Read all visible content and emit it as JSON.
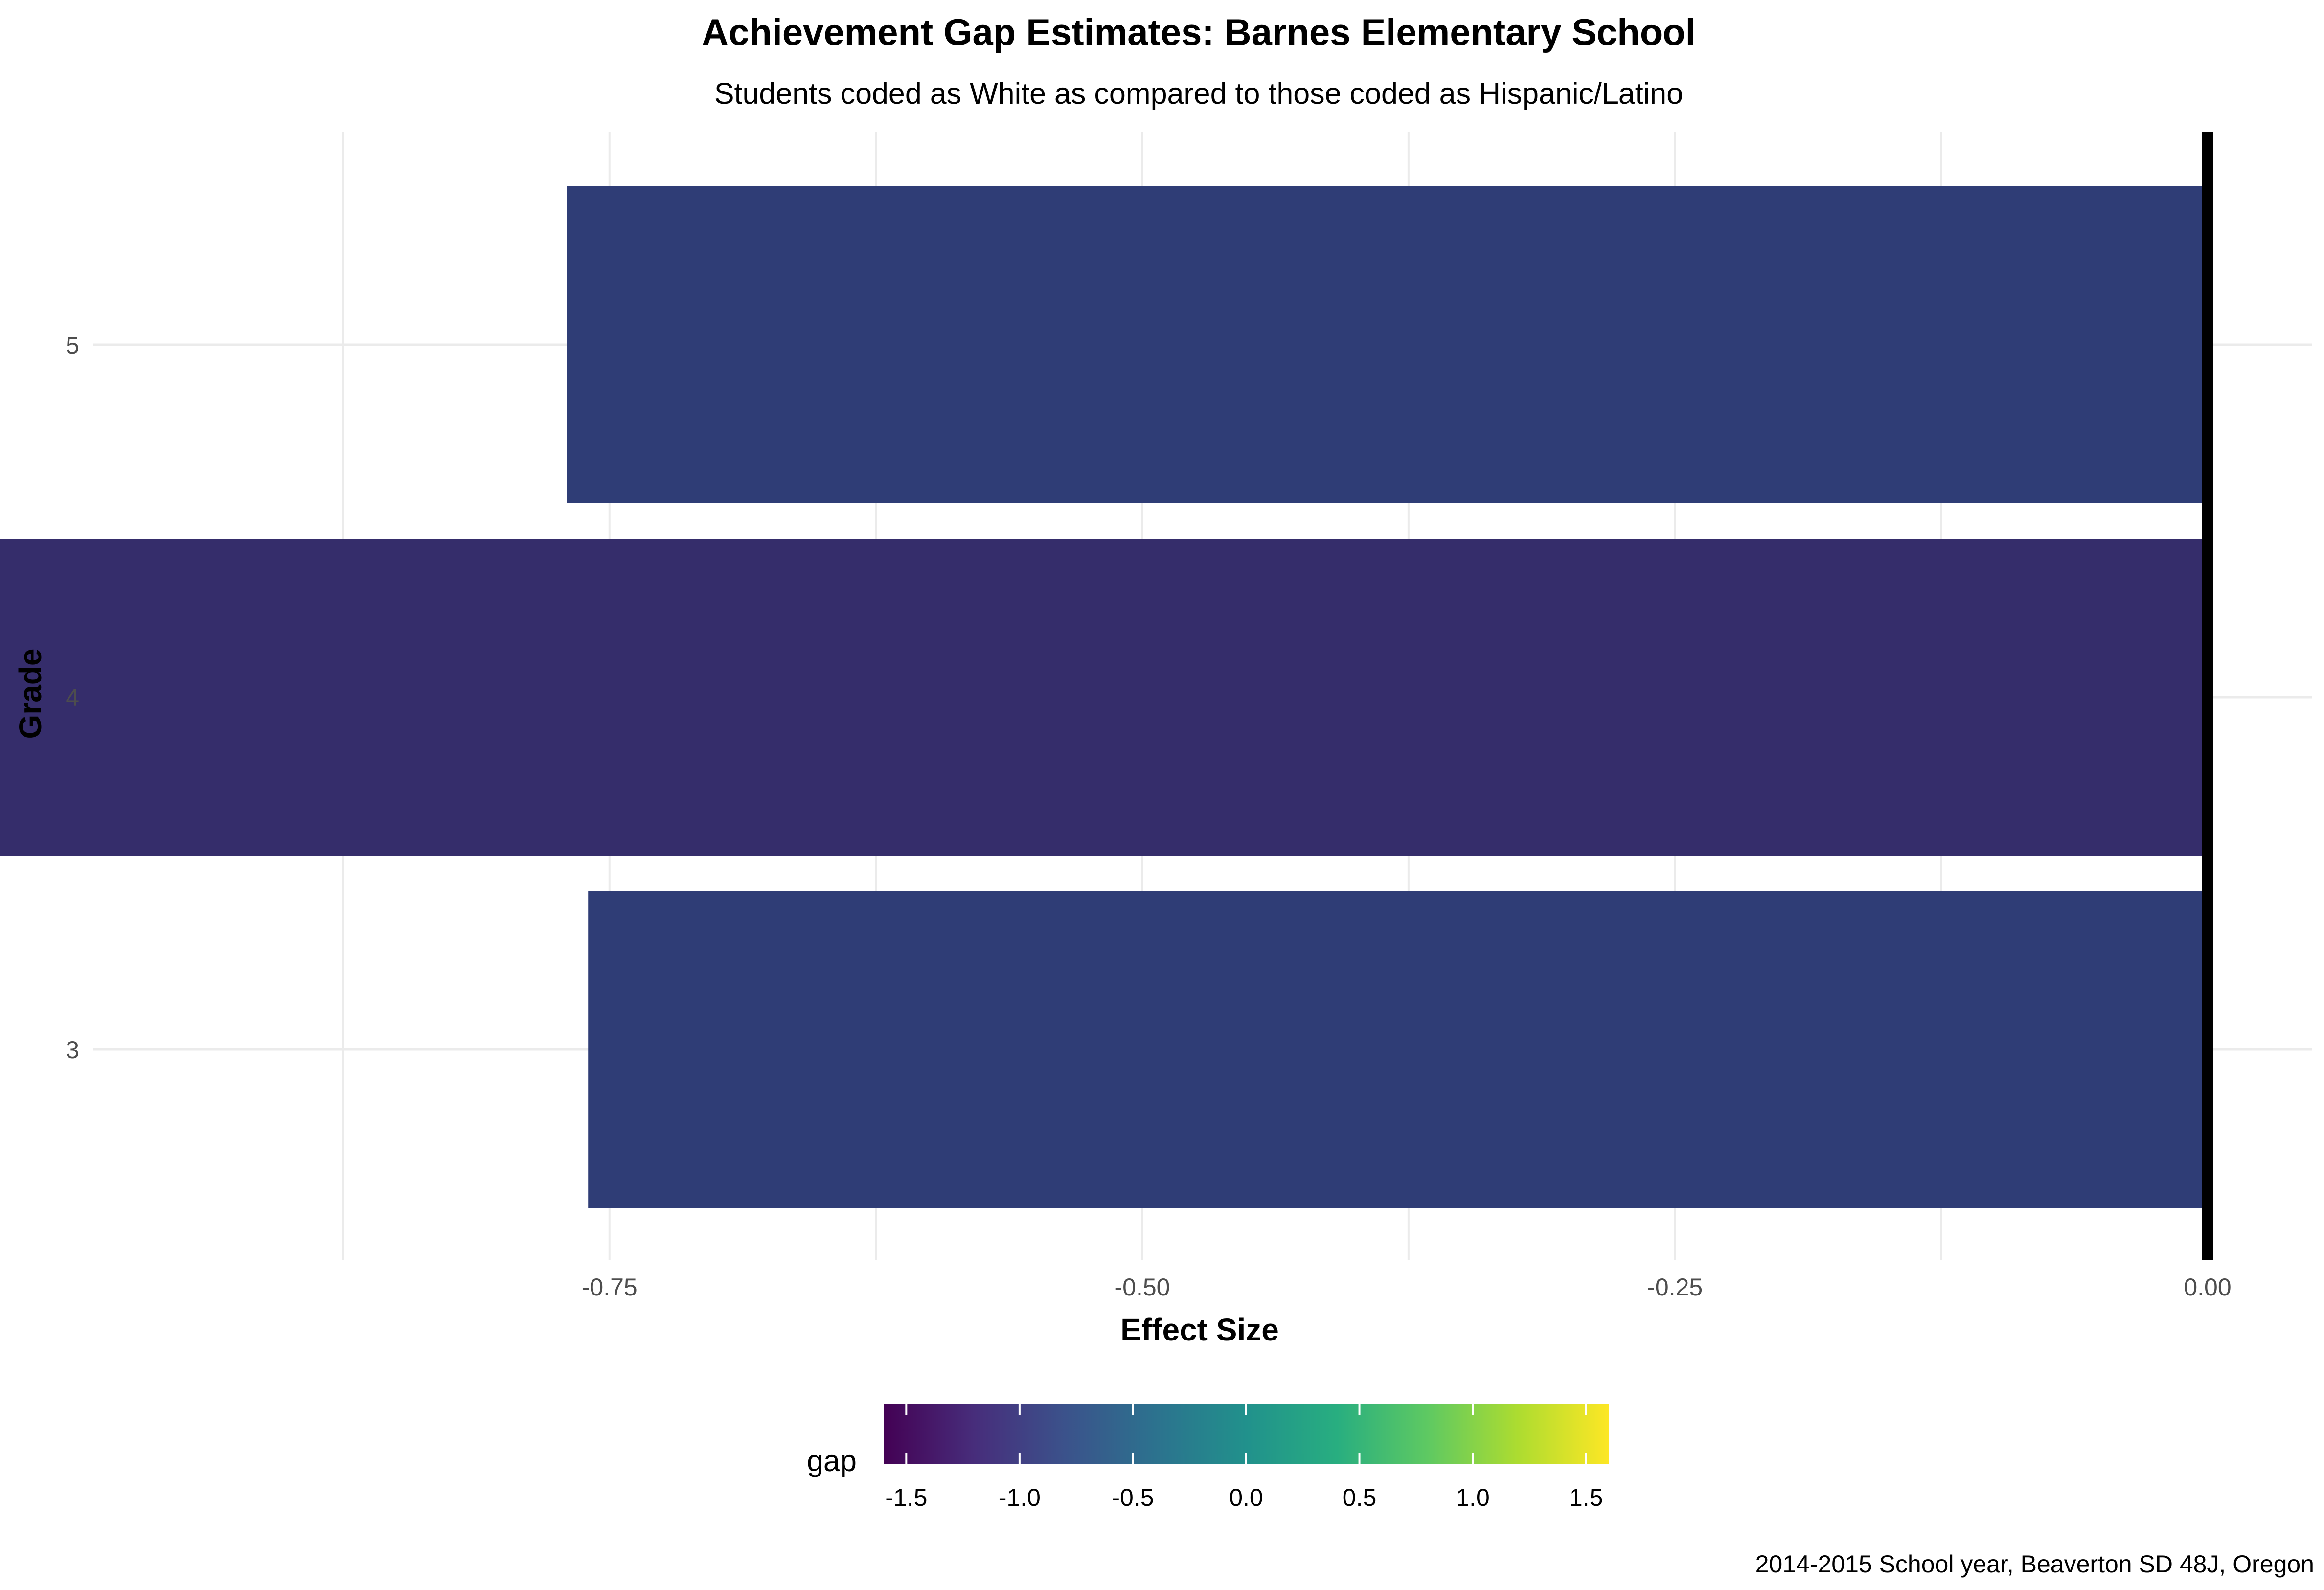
{
  "chart_data": {
    "type": "bar",
    "orientation": "horizontal",
    "title": "Achievement Gap Estimates: Barnes Elementary School",
    "subtitle": "Students coded as White as compared to those coded as Hispanic/Latino",
    "xlabel": "Effect Size",
    "ylabel": "Grade",
    "categories": [
      "3",
      "4",
      "5"
    ],
    "values": [
      -0.76,
      -1.05,
      -0.77
    ],
    "xlim": [
      -1.07,
      0.02
    ],
    "xticks": [
      -0.75,
      -0.5,
      -0.25,
      0.0
    ],
    "xtick_labels": [
      "-0.75",
      "-0.50",
      "-0.25",
      "0.00"
    ],
    "reference_line": 0,
    "grid": true,
    "color_scale": {
      "name": "viridis",
      "title": "gap",
      "range": [
        -1.6,
        1.6
      ],
      "ticks": [
        -1.5,
        -1.0,
        -0.5,
        0.0,
        0.5,
        1.0,
        1.5
      ],
      "tick_labels": [
        "-1.5",
        "-1.0",
        "-0.5",
        "0.0",
        "0.5",
        "1.0",
        "1.5"
      ],
      "placement": "bottom"
    },
    "bar_colors": [
      "#2f3d76",
      "#352d6b",
      "#2f3d76"
    ],
    "caption": "2014-2015 School year, Beaverton SD 48J, Oregon"
  }
}
